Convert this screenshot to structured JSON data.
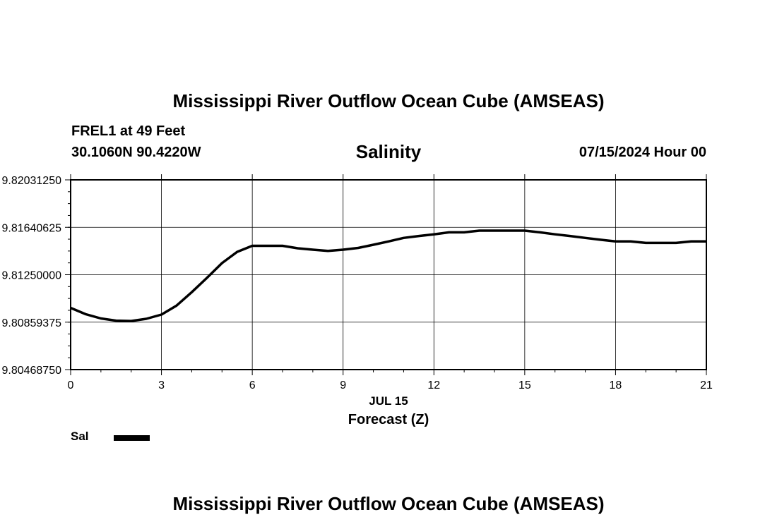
{
  "header": {
    "title": "Mississippi River Outflow Ocean Cube (AMSEAS)",
    "station": "FREL1 at 49 Feet",
    "coordinates": "30.1060N  90.4220W",
    "variable": "Salinity",
    "datetime": "07/15/2024 Hour 00"
  },
  "footer": {
    "repeated_title": "Mississippi River Outflow Ocean Cube (AMSEAS)"
  },
  "legend": {
    "items": [
      {
        "label": "Sal",
        "color": "#000000"
      }
    ]
  },
  "chart_data": {
    "type": "line",
    "title": "Salinity",
    "xlabel": "Forecast (Z)",
    "date_label": "JUL 15",
    "ylabel": "",
    "xlim": [
      0,
      21
    ],
    "ylim": [
      9.8046875,
      9.8203125
    ],
    "x_ticks": [
      0,
      3,
      6,
      9,
      12,
      15,
      18,
      21
    ],
    "x_tick_labels": [
      "0",
      "3",
      "6",
      "9",
      "12",
      "15",
      "18",
      "21"
    ],
    "y_ticks": [
      9.8046875,
      9.80859375,
      9.8125,
      9.81640625,
      9.8203125
    ],
    "y_tick_labels": [
      "9.80468750",
      "9.80859375",
      "9.81250000",
      "9.81640625",
      "9.82031250"
    ],
    "grid": true,
    "legend_position": "bottom-left",
    "series": [
      {
        "name": "Sal",
        "color": "#000000",
        "x": [
          0,
          0.5,
          1,
          1.5,
          2,
          2.5,
          3,
          3.5,
          4,
          4.5,
          5,
          5.5,
          6,
          6.5,
          7,
          7.5,
          8,
          8.5,
          9,
          9.5,
          10,
          10.5,
          11,
          11.5,
          12,
          12.5,
          13,
          13.5,
          14,
          14.5,
          15,
          15.5,
          16,
          16.5,
          17,
          17.5,
          18,
          18.5,
          19,
          19.5,
          20,
          20.5,
          21
        ],
        "y": [
          9.80977,
          9.80925,
          9.8089,
          9.80872,
          9.80869,
          9.80887,
          9.80922,
          9.80996,
          9.81106,
          9.81224,
          9.81346,
          9.81438,
          9.81488,
          9.81488,
          9.81488,
          9.81468,
          9.81456,
          9.81446,
          9.81456,
          9.81471,
          9.81497,
          9.81524,
          9.81553,
          9.81569,
          9.81583,
          9.81599,
          9.81599,
          9.81613,
          9.81613,
          9.81613,
          9.81613,
          9.81599,
          9.81583,
          9.81569,
          9.81553,
          9.81538,
          9.81524,
          9.81524,
          9.81512,
          9.81512,
          9.81512,
          9.81524,
          9.81524
        ]
      }
    ]
  }
}
